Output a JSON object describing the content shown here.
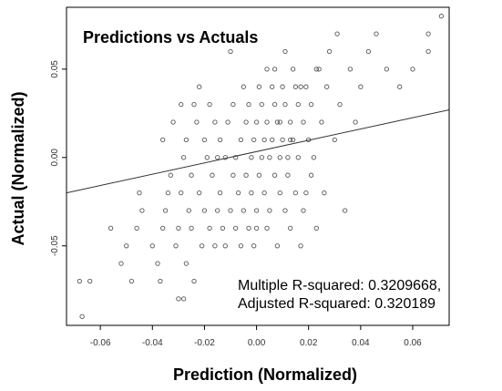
{
  "chart_data": {
    "type": "scatter",
    "title": "Predictions vs Actuals",
    "xlabel": "Prediction (Normalized)",
    "ylabel": "Actual (Normalized)",
    "xlim": [
      -0.073,
      0.074
    ],
    "ylim": [
      -0.095,
      0.085
    ],
    "xticks": [
      -0.06,
      -0.04,
      -0.02,
      0.0,
      0.02,
      0.04,
      0.06
    ],
    "xtick_labels": [
      "-0.06",
      "-0.04",
      "-0.02",
      "0.00",
      "0.02",
      "0.04",
      "0.06"
    ],
    "yticks": [
      -0.05,
      0.0,
      0.05
    ],
    "ytick_labels": [
      "-0.05",
      "0.00",
      "0.05"
    ],
    "grid": false,
    "point_color": "#555555",
    "line_color": "#333333",
    "regression_line": {
      "x": [
        -0.073,
        0.074
      ],
      "y": [
        -0.02,
        0.027
      ]
    },
    "annotations": [
      "Multiple R-squared:  0.3209668,",
      "Adjusted R-squared:  0.320189"
    ],
    "points": [
      [
        -0.067,
        -0.09
      ],
      [
        -0.068,
        -0.07
      ],
      [
        -0.064,
        -0.07
      ],
      [
        -0.056,
        -0.04
      ],
      [
        -0.052,
        -0.06
      ],
      [
        -0.05,
        -0.05
      ],
      [
        -0.048,
        -0.07
      ],
      [
        -0.046,
        -0.04
      ],
      [
        -0.045,
        -0.02
      ],
      [
        -0.044,
        -0.03
      ],
      [
        -0.04,
        -0.05
      ],
      [
        -0.038,
        -0.06
      ],
      [
        -0.037,
        -0.07
      ],
      [
        -0.036,
        -0.04
      ],
      [
        -0.035,
        -0.03
      ],
      [
        -0.034,
        -0.02
      ],
      [
        -0.033,
        -0.01
      ],
      [
        -0.032,
        0.02
      ],
      [
        -0.031,
        -0.05
      ],
      [
        -0.03,
        -0.04
      ],
      [
        -0.03,
        -0.08
      ],
      [
        -0.029,
        -0.02
      ],
      [
        -0.028,
        0.0
      ],
      [
        -0.028,
        -0.08
      ],
      [
        -0.027,
        0.01
      ],
      [
        -0.027,
        -0.06
      ],
      [
        -0.026,
        -0.03
      ],
      [
        -0.025,
        -0.04
      ],
      [
        -0.025,
        -0.01
      ],
      [
        -0.024,
        0.03
      ],
      [
        -0.024,
        -0.07
      ],
      [
        -0.023,
        0.02
      ],
      [
        -0.022,
        -0.02
      ],
      [
        -0.022,
        0.04
      ],
      [
        -0.021,
        -0.05
      ],
      [
        -0.02,
        -0.03
      ],
      [
        -0.02,
        0.01
      ],
      [
        -0.019,
        0.0
      ],
      [
        -0.018,
        -0.04
      ],
      [
        -0.018,
        0.03
      ],
      [
        -0.017,
        -0.01
      ],
      [
        -0.016,
        -0.05
      ],
      [
        -0.016,
        0.02
      ],
      [
        -0.015,
        -0.03
      ],
      [
        -0.014,
        0.01
      ],
      [
        -0.014,
        -0.02
      ],
      [
        -0.013,
        -0.04
      ],
      [
        -0.012,
        0.0
      ],
      [
        -0.012,
        -0.05
      ],
      [
        -0.011,
        0.02
      ],
      [
        -0.01,
        -0.03
      ],
      [
        -0.01,
        0.06
      ],
      [
        -0.009,
        -0.01
      ],
      [
        -0.009,
        0.03
      ],
      [
        -0.008,
        0.0
      ],
      [
        -0.008,
        -0.04
      ],
      [
        -0.007,
        -0.02
      ],
      [
        -0.006,
        0.01
      ],
      [
        -0.006,
        -0.05
      ],
      [
        -0.005,
        0.04
      ],
      [
        -0.005,
        -0.03
      ],
      [
        -0.004,
        0.02
      ],
      [
        -0.004,
        -0.01
      ],
      [
        -0.003,
        -0.04
      ],
      [
        -0.003,
        0.03
      ],
      [
        -0.002,
        0.0
      ],
      [
        -0.002,
        -0.02
      ],
      [
        -0.001,
        0.01
      ],
      [
        -0.001,
        -0.05
      ],
      [
        0.0,
        0.02
      ],
      [
        0.0,
        -0.03
      ],
      [
        0.001,
        0.04
      ],
      [
        0.001,
        -0.01
      ],
      [
        0.002,
        0.0
      ],
      [
        0.002,
        0.03
      ],
      [
        0.003,
        -0.02
      ],
      [
        0.003,
        0.01
      ],
      [
        0.004,
        -0.04
      ],
      [
        0.004,
        0.02
      ],
      [
        0.005,
        0.0
      ],
      [
        0.005,
        -0.03
      ],
      [
        0.006,
        0.04
      ],
      [
        0.006,
        0.01
      ],
      [
        0.007,
        -0.01
      ],
      [
        0.007,
        0.03
      ],
      [
        0.008,
        -0.05
      ],
      [
        0.008,
        0.02
      ],
      [
        0.009,
        0.0
      ],
      [
        0.009,
        -0.02
      ],
      [
        0.01,
        0.04
      ],
      [
        0.01,
        0.01
      ],
      [
        0.011,
        -0.03
      ],
      [
        0.011,
        0.03
      ],
      [
        0.012,
        0.0
      ],
      [
        0.012,
        -0.01
      ],
      [
        0.013,
        0.02
      ],
      [
        0.013,
        -0.04
      ],
      [
        0.014,
        0.05
      ],
      [
        0.014,
        0.01
      ],
      [
        0.015,
        -0.02
      ],
      [
        0.016,
        0.03
      ],
      [
        0.016,
        0.0
      ],
      [
        0.017,
        -0.05
      ],
      [
        0.018,
        0.02
      ],
      [
        0.018,
        -0.03
      ],
      [
        0.019,
        0.04
      ],
      [
        0.02,
        0.01
      ],
      [
        0.021,
        -0.01
      ],
      [
        0.021,
        0.03
      ],
      [
        0.022,
        0.0
      ],
      [
        0.023,
        -0.04
      ],
      [
        0.024,
        0.05
      ],
      [
        0.025,
        0.02
      ],
      [
        0.026,
        -0.02
      ],
      [
        0.027,
        0.04
      ],
      [
        0.028,
        0.06
      ],
      [
        0.03,
        0.01
      ],
      [
        0.032,
        0.03
      ],
      [
        0.034,
        -0.03
      ],
      [
        0.036,
        0.05
      ],
      [
        0.038,
        0.02
      ],
      [
        0.04,
        0.04
      ],
      [
        0.043,
        0.06
      ],
      [
        0.046,
        0.07
      ],
      [
        0.05,
        0.05
      ],
      [
        0.055,
        0.04
      ],
      [
        0.06,
        0.05
      ],
      [
        0.066,
        0.06
      ],
      [
        0.066,
        0.07
      ],
      [
        0.071,
        0.08
      ],
      [
        0.004,
        0.05
      ],
      [
        0.007,
        0.05
      ],
      [
        0.011,
        0.06
      ],
      [
        0.017,
        0.04
      ],
      [
        0.023,
        0.05
      ],
      [
        0.031,
        0.07
      ],
      [
        -0.036,
        0.01
      ],
      [
        -0.029,
        0.03
      ],
      [
        0.015,
        0.04
      ],
      [
        0.019,
        -0.02
      ],
      [
        0.0,
        -0.04
      ],
      [
        -0.015,
        0.0
      ],
      [
        0.009,
        0.02
      ],
      [
        0.013,
        0.01
      ]
    ]
  }
}
